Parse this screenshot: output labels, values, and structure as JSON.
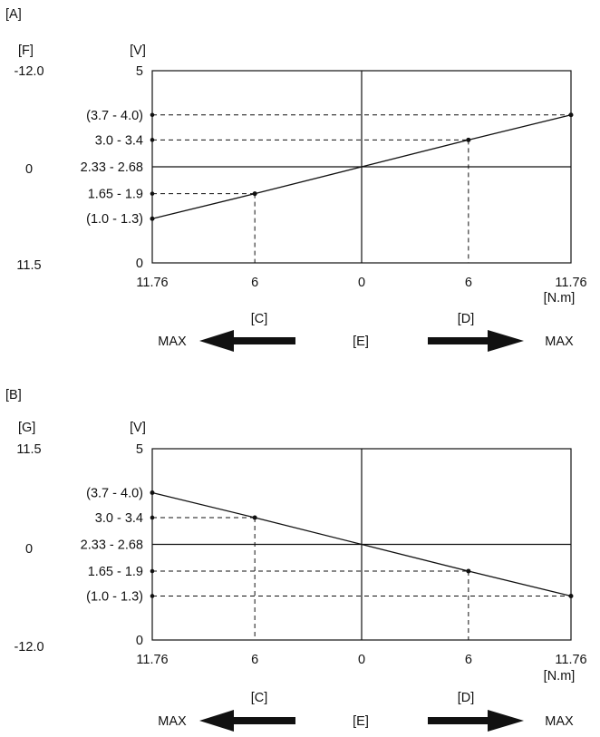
{
  "chart_data": [
    {
      "type": "line",
      "panel_label": "[A]",
      "left_axis_label": "[F]",
      "left_ticks": [
        "-12.0",
        "0",
        "11.5"
      ],
      "ylabel": "[V]",
      "ylim": [
        0,
        5
      ],
      "y_ticks": [
        {
          "label": "5",
          "value": 5,
          "dashed": false
        },
        {
          "label": "(3.7 - 4.0)",
          "value": 3.85,
          "dashed": true
        },
        {
          "label": "3.0 - 3.4",
          "value": 3.2,
          "dashed": true
        },
        {
          "label": "2.33 - 2.68",
          "value": 2.5,
          "dashed": false
        },
        {
          "label": "1.65 - 1.9",
          "value": 1.8,
          "dashed": true
        },
        {
          "label": "(1.0 - 1.3)",
          "value": 1.15,
          "dashed": false
        },
        {
          "label": "0",
          "value": 0,
          "dashed": false
        }
      ],
      "x_ticks": [
        "11.76",
        "6",
        "0",
        "6",
        "11.76"
      ],
      "x_values": [
        -11.76,
        -6,
        0,
        6,
        11.76
      ],
      "xlim": [
        -11.76,
        11.76
      ],
      "x_unit": "[N.m]",
      "series": [
        {
          "x": [
            -11.76,
            -6,
            0,
            6,
            11.76
          ],
          "y": [
            1.15,
            1.8,
            2.5,
            3.2,
            3.85
          ]
        }
      ],
      "dashed_verticals": [
        -6,
        6
      ],
      "direction": {
        "left_label": "[C]",
        "center_label": "[E]",
        "right_label": "[D]",
        "left_max": "MAX",
        "right_max": "MAX"
      }
    },
    {
      "type": "line",
      "panel_label": "[B]",
      "left_axis_label": "[G]",
      "left_ticks": [
        "11.5",
        "0",
        "-12.0"
      ],
      "ylabel": "[V]",
      "ylim": [
        0,
        5
      ],
      "y_ticks": [
        {
          "label": "5",
          "value": 5,
          "dashed": false
        },
        {
          "label": "(3.7 - 4.0)",
          "value": 3.85,
          "dashed": false
        },
        {
          "label": "3.0 - 3.4",
          "value": 3.2,
          "dashed": true
        },
        {
          "label": "2.33 - 2.68",
          "value": 2.5,
          "dashed": false
        },
        {
          "label": "1.65 - 1.9",
          "value": 1.8,
          "dashed": true
        },
        {
          "label": "(1.0 - 1.3)",
          "value": 1.15,
          "dashed": true
        },
        {
          "label": "0",
          "value": 0,
          "dashed": false
        }
      ],
      "x_ticks": [
        "11.76",
        "6",
        "0",
        "6",
        "11.76"
      ],
      "x_values": [
        -11.76,
        -6,
        0,
        6,
        11.76
      ],
      "xlim": [
        -11.76,
        11.76
      ],
      "x_unit": "[N.m]",
      "series": [
        {
          "x": [
            -11.76,
            -6,
            0,
            6,
            11.76
          ],
          "y": [
            3.85,
            3.2,
            2.5,
            1.8,
            1.15
          ]
        }
      ],
      "dashed_verticals": [
        -6,
        6
      ],
      "direction": {
        "left_label": "[C]",
        "center_label": "[E]",
        "right_label": "[D]",
        "left_max": "MAX",
        "right_max": "MAX"
      }
    }
  ]
}
